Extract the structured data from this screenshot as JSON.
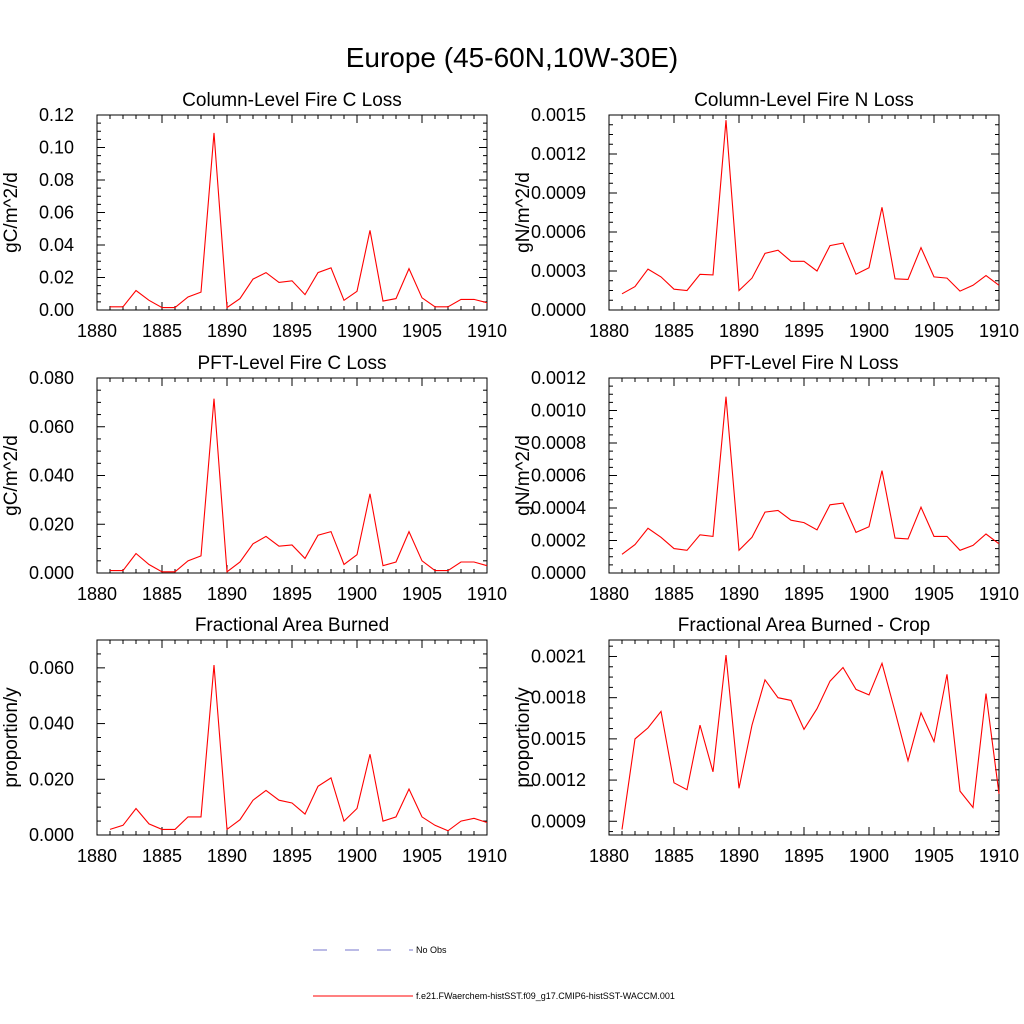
{
  "figure": {
    "title": "Europe (45-60N,10W-30E)"
  },
  "legend": {
    "entries": [
      {
        "label": "No Obs",
        "color": "#7777cc",
        "dash": true
      },
      {
        "label": "f.e21.FWaerchem-histSST.f09_g17.CMIP6-histSST-WACCM.001",
        "color": "#ff0000",
        "dash": false
      }
    ]
  },
  "colors": {
    "series": "#ff0000",
    "axis": "#000000"
  },
  "chart_data": [
    {
      "type": "line",
      "title": "Column-Level Fire C Loss",
      "xlabel": "",
      "ylabel": "gC/m^2/d",
      "xlim": [
        1880,
        1910
      ],
      "ylim": [
        0,
        0.12
      ],
      "xticks": [
        1880,
        1885,
        1890,
        1895,
        1900,
        1905,
        1910
      ],
      "xtick_labels": [
        "1880",
        "1885",
        "1890",
        "1895",
        "1900",
        "1905",
        "1910"
      ],
      "yticks": [
        0,
        0.02,
        0.04,
        0.06,
        0.08,
        0.1,
        0.12
      ],
      "ytick_labels": [
        "0.00",
        "0.02",
        "0.04",
        "0.06",
        "0.08",
        "0.10",
        "0.12"
      ],
      "series": [
        {
          "x": [
            1881,
            1882,
            1883,
            1884,
            1885,
            1886,
            1887,
            1888,
            1889,
            1890,
            1891,
            1892,
            1893,
            1894,
            1895,
            1896,
            1897,
            1898,
            1899,
            1900,
            1901,
            1902,
            1903,
            1904,
            1905,
            1906,
            1907,
            1908,
            1909,
            1910
          ],
          "values": [
            0.002,
            0.002,
            0.012,
            0.006,
            0.0015,
            0.0015,
            0.008,
            0.011,
            0.109,
            0.0015,
            0.007,
            0.019,
            0.023,
            0.017,
            0.018,
            0.0095,
            0.023,
            0.026,
            0.006,
            0.0115,
            0.049,
            0.0055,
            0.007,
            0.0255,
            0.0075,
            0.002,
            0.002,
            0.0065,
            0.0065,
            0.0045
          ]
        }
      ]
    },
    {
      "type": "line",
      "title": "Column-Level Fire N Loss",
      "xlabel": "",
      "ylabel": "gN/m^2/d",
      "xlim": [
        1880,
        1910
      ],
      "ylim": [
        0,
        0.0015
      ],
      "xticks": [
        1880,
        1885,
        1890,
        1895,
        1900,
        1905,
        1910
      ],
      "xtick_labels": [
        "1880",
        "1885",
        "1890",
        "1895",
        "1900",
        "1905",
        "1910"
      ],
      "yticks": [
        0,
        0.0003,
        0.0006,
        0.0009,
        0.0012,
        0.0015
      ],
      "ytick_labels": [
        "0.0000",
        "0.0003",
        "0.0006",
        "0.0009",
        "0.0012",
        "0.0015"
      ],
      "series": [
        {
          "x": [
            1881,
            1882,
            1883,
            1884,
            1885,
            1886,
            1887,
            1888,
            1889,
            1890,
            1891,
            1892,
            1893,
            1894,
            1895,
            1896,
            1897,
            1898,
            1899,
            1900,
            1901,
            1902,
            1903,
            1904,
            1905,
            1906,
            1907,
            1908,
            1909,
            1910
          ],
          "values": [
            0.000125,
            0.00018,
            0.000315,
            0.000255,
            0.00016,
            0.00015,
            0.000275,
            0.00027,
            0.00146,
            0.00015,
            0.000245,
            0.000435,
            0.00046,
            0.000375,
            0.000375,
            0.0003,
            0.000495,
            0.000515,
            0.000275,
            0.000325,
            0.00079,
            0.00024,
            0.000235,
            0.00048,
            0.000255,
            0.000245,
            0.000145,
            0.00019,
            0.000265,
            0.00019
          ]
        }
      ]
    },
    {
      "type": "line",
      "title": "PFT-Level Fire C Loss",
      "xlabel": "",
      "ylabel": "gC/m^2/d",
      "xlim": [
        1880,
        1910
      ],
      "ylim": [
        0,
        0.08
      ],
      "xticks": [
        1880,
        1885,
        1890,
        1895,
        1900,
        1905,
        1910
      ],
      "xtick_labels": [
        "1880",
        "1885",
        "1890",
        "1895",
        "1900",
        "1905",
        "1910"
      ],
      "yticks": [
        0,
        0.02,
        0.04,
        0.06,
        0.08
      ],
      "ytick_labels": [
        "0.000",
        "0.020",
        "0.040",
        "0.060",
        "0.080"
      ],
      "series": [
        {
          "x": [
            1881,
            1882,
            1883,
            1884,
            1885,
            1886,
            1887,
            1888,
            1889,
            1890,
            1891,
            1892,
            1893,
            1894,
            1895,
            1896,
            1897,
            1898,
            1899,
            1900,
            1901,
            1902,
            1903,
            1904,
            1905,
            1906,
            1907,
            1908,
            1909,
            1910
          ],
          "values": [
            0.001,
            0.001,
            0.008,
            0.0035,
            0.0005,
            0.0005,
            0.005,
            0.007,
            0.0715,
            0.0005,
            0.0045,
            0.012,
            0.015,
            0.011,
            0.0115,
            0.006,
            0.0155,
            0.017,
            0.0035,
            0.0075,
            0.0325,
            0.003,
            0.0045,
            0.017,
            0.005,
            0.001,
            0.001,
            0.0045,
            0.0045,
            0.003
          ]
        }
      ]
    },
    {
      "type": "line",
      "title": "PFT-Level Fire N Loss",
      "xlabel": "",
      "ylabel": "gN/m^2/d",
      "xlim": [
        1880,
        1910
      ],
      "ylim": [
        0,
        0.0012
      ],
      "xticks": [
        1880,
        1885,
        1890,
        1895,
        1900,
        1905,
        1910
      ],
      "xtick_labels": [
        "1880",
        "1885",
        "1890",
        "1895",
        "1900",
        "1905",
        "1910"
      ],
      "yticks": [
        0,
        0.0002,
        0.0004,
        0.0006,
        0.0008,
        0.001,
        0.0012
      ],
      "ytick_labels": [
        "0.0000",
        "0.0002",
        "0.0004",
        "0.0006",
        "0.0008",
        "0.0010",
        "0.0012"
      ],
      "series": [
        {
          "x": [
            1881,
            1882,
            1883,
            1884,
            1885,
            1886,
            1887,
            1888,
            1889,
            1890,
            1891,
            1892,
            1893,
            1894,
            1895,
            1896,
            1897,
            1898,
            1899,
            1900,
            1901,
            1902,
            1903,
            1904,
            1905,
            1906,
            1907,
            1908,
            1909,
            1910
          ],
          "values": [
            0.000115,
            0.000175,
            0.000275,
            0.00022,
            0.00015,
            0.00014,
            0.000235,
            0.000225,
            0.001085,
            0.00014,
            0.00022,
            0.000375,
            0.000385,
            0.000325,
            0.00031,
            0.000265,
            0.00042,
            0.00043,
            0.00025,
            0.000285,
            0.00063,
            0.000215,
            0.00021,
            0.000405,
            0.000225,
            0.000225,
            0.00014,
            0.00017,
            0.00024,
            0.00018
          ]
        }
      ]
    },
    {
      "type": "line",
      "title": "Fractional Area Burned",
      "xlabel": "",
      "ylabel": "proportion/y",
      "xlim": [
        1880,
        1910
      ],
      "ylim": [
        0,
        0.07
      ],
      "xticks": [
        1880,
        1885,
        1890,
        1895,
        1900,
        1905,
        1910
      ],
      "xtick_labels": [
        "1880",
        "1885",
        "1890",
        "1895",
        "1900",
        "1905",
        "1910"
      ],
      "yticks": [
        0,
        0.02,
        0.04,
        0.06
      ],
      "ytick_labels": [
        "0.000",
        "0.020",
        "0.040",
        "0.060"
      ],
      "series": [
        {
          "x": [
            1881,
            1882,
            1883,
            1884,
            1885,
            1886,
            1887,
            1888,
            1889,
            1890,
            1891,
            1892,
            1893,
            1894,
            1895,
            1896,
            1897,
            1898,
            1899,
            1900,
            1901,
            1902,
            1903,
            1904,
            1905,
            1906,
            1907,
            1908,
            1909,
            1910
          ],
          "values": [
            0.002,
            0.0035,
            0.0095,
            0.004,
            0.002,
            0.002,
            0.0065,
            0.0065,
            0.061,
            0.002,
            0.0055,
            0.0125,
            0.016,
            0.0125,
            0.0115,
            0.0075,
            0.0175,
            0.0205,
            0.005,
            0.0095,
            0.029,
            0.005,
            0.0065,
            0.0165,
            0.0065,
            0.0035,
            0.0015,
            0.005,
            0.006,
            0.0045
          ]
        }
      ]
    },
    {
      "type": "line",
      "title": "Fractional Area Burned - Crop",
      "xlabel": "",
      "ylabel": "proportion/y",
      "xlim": [
        1880,
        1910
      ],
      "ylim": [
        0.0008,
        0.00222
      ],
      "xticks": [
        1880,
        1885,
        1890,
        1895,
        1900,
        1905,
        1910
      ],
      "xtick_labels": [
        "1880",
        "1885",
        "1890",
        "1895",
        "1900",
        "1905",
        "1910"
      ],
      "yticks": [
        0.0009,
        0.0012,
        0.0015,
        0.0018,
        0.0021
      ],
      "ytick_labels": [
        "0.0009",
        "0.0012",
        "0.0015",
        "0.0018",
        "0.0021"
      ],
      "series": [
        {
          "x": [
            1881,
            1882,
            1883,
            1884,
            1885,
            1886,
            1887,
            1888,
            1889,
            1890,
            1891,
            1892,
            1893,
            1894,
            1895,
            1896,
            1897,
            1898,
            1899,
            1900,
            1901,
            1902,
            1903,
            1904,
            1905,
            1906,
            1907,
            1908,
            1909,
            1910
          ],
          "values": [
            0.00084,
            0.0015,
            0.00158,
            0.0017,
            0.00118,
            0.00113,
            0.0016,
            0.00126,
            0.00211,
            0.00114,
            0.0016,
            0.00193,
            0.0018,
            0.00178,
            0.00157,
            0.00172,
            0.00192,
            0.00202,
            0.00186,
            0.00182,
            0.00205,
            0.0017,
            0.00134,
            0.00169,
            0.00148,
            0.00197,
            0.00112,
            0.001,
            0.00183,
            0.0011
          ]
        }
      ]
    }
  ]
}
